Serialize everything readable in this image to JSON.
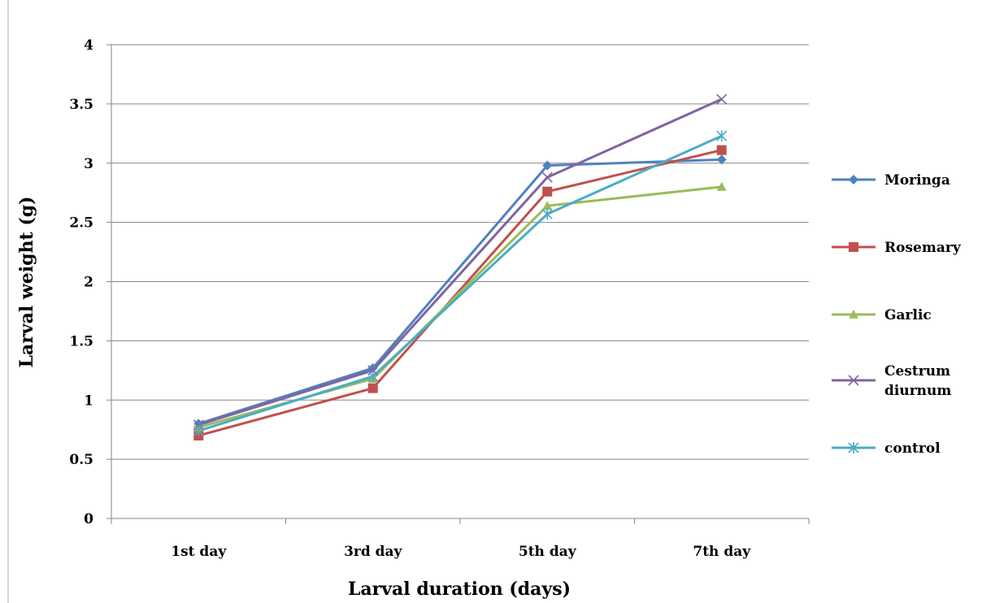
{
  "chart_data": {
    "type": "line",
    "title": "",
    "xlabel": "Larval duration (days)",
    "ylabel": "Larval weight (g)",
    "categories": [
      "1st day",
      "3rd day",
      "5th day",
      "7th day"
    ],
    "ylim": [
      0,
      4
    ],
    "yticks": [
      "0",
      "0.5",
      "1",
      "1.5",
      "2",
      "2.5",
      "3",
      "3.5",
      "4"
    ],
    "grid": true,
    "legend_position": "right",
    "series": [
      {
        "name": "Moringa",
        "name_lines": [
          "Moringa"
        ],
        "color": "#4F81BD",
        "marker": "diamond",
        "values": [
          0.8,
          1.27,
          2.98,
          3.03
        ]
      },
      {
        "name": "Rosemary",
        "name_lines": [
          "Rosemary"
        ],
        "color": "#C0504D",
        "marker": "square",
        "values": [
          0.7,
          1.1,
          2.76,
          3.11
        ]
      },
      {
        "name": "Garlic",
        "name_lines": [
          "Garlic"
        ],
        "color": "#9BBB59",
        "marker": "triangle",
        "values": [
          0.77,
          1.18,
          2.64,
          2.8
        ]
      },
      {
        "name": "Cestrum diurnum",
        "name_lines": [
          "Cestrum",
          "diurnum"
        ],
        "color": "#8064A2",
        "marker": "x",
        "values": [
          0.79,
          1.25,
          2.88,
          3.54
        ]
      },
      {
        "name": "control",
        "name_lines": [
          "control"
        ],
        "color": "#4BACC6",
        "marker": "star",
        "values": [
          0.74,
          1.2,
          2.57,
          3.23
        ]
      }
    ]
  }
}
